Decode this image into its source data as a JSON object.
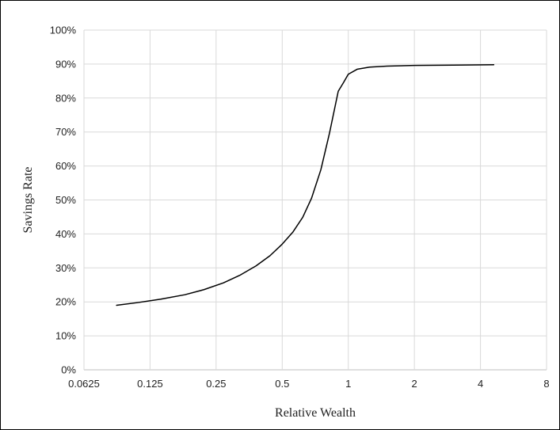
{
  "chart_data": {
    "type": "line",
    "title": "",
    "xlabel": "Relative Wealth",
    "ylabel": "Savings Rate",
    "x_scale": "log2",
    "xlim": [
      0.0625,
      8
    ],
    "ylim": [
      0,
      100
    ],
    "x_ticks": [
      "0.0625",
      "0.125",
      "0.25",
      "0.5",
      "1",
      "2",
      "4",
      "8"
    ],
    "x_tick_values": [
      0.0625,
      0.125,
      0.25,
      0.5,
      1,
      2,
      4,
      8
    ],
    "y_ticks": [
      "0%",
      "10%",
      "20%",
      "30%",
      "40%",
      "50%",
      "60%",
      "70%",
      "80%",
      "90%",
      "100%"
    ],
    "y_tick_values": [
      0,
      10,
      20,
      30,
      40,
      50,
      60,
      70,
      80,
      90,
      100
    ],
    "grid": true,
    "line_color": "#000000",
    "grid_color": "#d9d9d9",
    "series": [
      {
        "x": [
          0.088,
          0.11,
          0.14,
          0.18,
          0.22,
          0.27,
          0.32,
          0.38,
          0.44,
          0.5,
          0.56,
          0.62,
          0.68,
          0.75,
          0.82,
          0.9,
          0.95,
          1.0,
          1.1,
          1.25,
          1.5,
          2.0,
          3.0,
          4.6
        ],
        "y": [
          19,
          19.8,
          20.8,
          22.1,
          23.6,
          25.6,
          27.8,
          30.6,
          33.6,
          37.0,
          40.6,
          44.9,
          50.5,
          58.9,
          69.5,
          82.0,
          84.5,
          87.0,
          88.5,
          89.1,
          89.4,
          89.6,
          89.7,
          89.8
        ]
      }
    ]
  }
}
